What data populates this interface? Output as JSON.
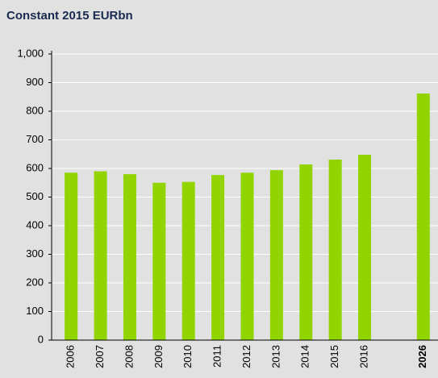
{
  "chart_data": {
    "type": "bar",
    "title": "Constant 2015 EURbn",
    "categories": [
      "2006",
      "2007",
      "2008",
      "2009",
      "2010",
      "2011",
      "2012",
      "2013",
      "2014",
      "2015",
      "2016",
      null,
      "2026"
    ],
    "values": [
      585,
      590,
      580,
      550,
      553,
      577,
      585,
      594,
      614,
      631,
      648,
      null,
      862
    ],
    "color": "#92d400",
    "ylim": [
      0,
      1000
    ],
    "yticks": [
      0,
      100,
      200,
      300,
      400,
      500,
      600,
      700,
      800,
      900,
      {
        "value": 1000,
        "label": "1,000"
      }
    ],
    "grid": true
  }
}
